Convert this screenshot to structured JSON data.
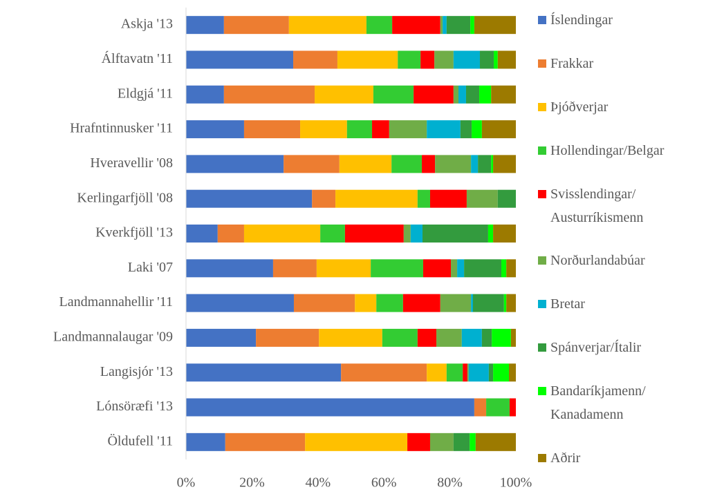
{
  "chart_data": {
    "type": "stacked_bar_horizontal",
    "categories": [
      "Askja '13",
      "Álftavatn '11",
      "Eldgjá '11",
      "Hrafntinnusker '11",
      "Hveravellir '08",
      "Kerlingarfjöll '08",
      "Kverkfjöll '13",
      "Laki '07",
      "Landmannahellir '11",
      "Landmannalaugar '09",
      "Langisjór '13",
      "Lónsöræfi '13",
      "Öldufell '11"
    ],
    "series": [
      {
        "name": "Íslendingar",
        "color": "#4472c4",
        "values": [
          11.5,
          32.5,
          11.5,
          17.6,
          29.6,
          38.2,
          9.6,
          26.4,
          32.7,
          21.2,
          47.0,
          87.4,
          11.9
        ]
      },
      {
        "name": "Frakkar",
        "color": "#ed7d31",
        "values": [
          19.7,
          13.4,
          27.5,
          17.0,
          16.9,
          7.1,
          8.0,
          13.2,
          18.5,
          19.1,
          26.0,
          3.6,
          24.2
        ]
      },
      {
        "name": "Þjóðverjar",
        "color": "#ffc000",
        "values": [
          23.5,
          18.3,
          17.8,
          14.2,
          15.8,
          24.9,
          23.1,
          16.4,
          6.5,
          19.2,
          6.0,
          0,
          31.0
        ]
      },
      {
        "name": "Hollendingar/Belgar",
        "color": "#33cc33",
        "values": [
          7.8,
          6.9,
          12.2,
          7.6,
          9.2,
          3.8,
          7.5,
          15.9,
          8.1,
          10.7,
          4.9,
          7.1,
          0
        ]
      },
      {
        "name": "Svisslendingar/ Austurríkismenn",
        "color": "#ff0000",
        "values": [
          14.6,
          4.2,
          12.1,
          5.2,
          4.0,
          11.1,
          17.8,
          8.4,
          11.3,
          5.7,
          1.4,
          1.9,
          6.9
        ]
      },
      {
        "name": "Norðurlandabúar",
        "color": "#70ad47",
        "values": [
          0.7,
          5.8,
          1.5,
          11.4,
          10.9,
          9.4,
          2.1,
          1.9,
          9.3,
          7.7,
          0.4,
          0,
          7.1
        ]
      },
      {
        "name": "Bretar",
        "color": "#00b0d0",
        "values": [
          1.2,
          8.0,
          2.3,
          10.2,
          2.1,
          0,
          3.6,
          2.1,
          0.6,
          6.1,
          6.1,
          0,
          0
        ]
      },
      {
        "name": "Spánverjar/Ítalir",
        "color": "#339b3e",
        "values": [
          7.2,
          4.2,
          4.0,
          3.4,
          4.0,
          5.5,
          19.9,
          11.3,
          9.4,
          3.0,
          1.3,
          0,
          4.9
        ]
      },
      {
        "name": "Bandaríkjamenn/ Kanadamenn",
        "color": "#00ff00",
        "values": [
          1.2,
          1.2,
          3.6,
          3.1,
          0.6,
          0,
          1.5,
          1.5,
          0.7,
          5.8,
          4.8,
          0,
          1.8
        ]
      },
      {
        "name": "Aðrir",
        "color": "#9c7a00",
        "values": [
          12.6,
          5.5,
          7.5,
          10.3,
          6.9,
          0,
          6.9,
          2.9,
          2.9,
          1.5,
          2.1,
          0,
          12.2
        ]
      }
    ],
    "xlim": [
      0,
      100
    ],
    "xticks": [
      {
        "value": 0,
        "label": "0%"
      },
      {
        "value": 20,
        "label": "20%"
      },
      {
        "value": 40,
        "label": "40%"
      },
      {
        "value": 60,
        "label": "60%"
      },
      {
        "value": 80,
        "label": "80%"
      },
      {
        "value": 100,
        "label": "100%"
      }
    ],
    "legend": "right"
  }
}
